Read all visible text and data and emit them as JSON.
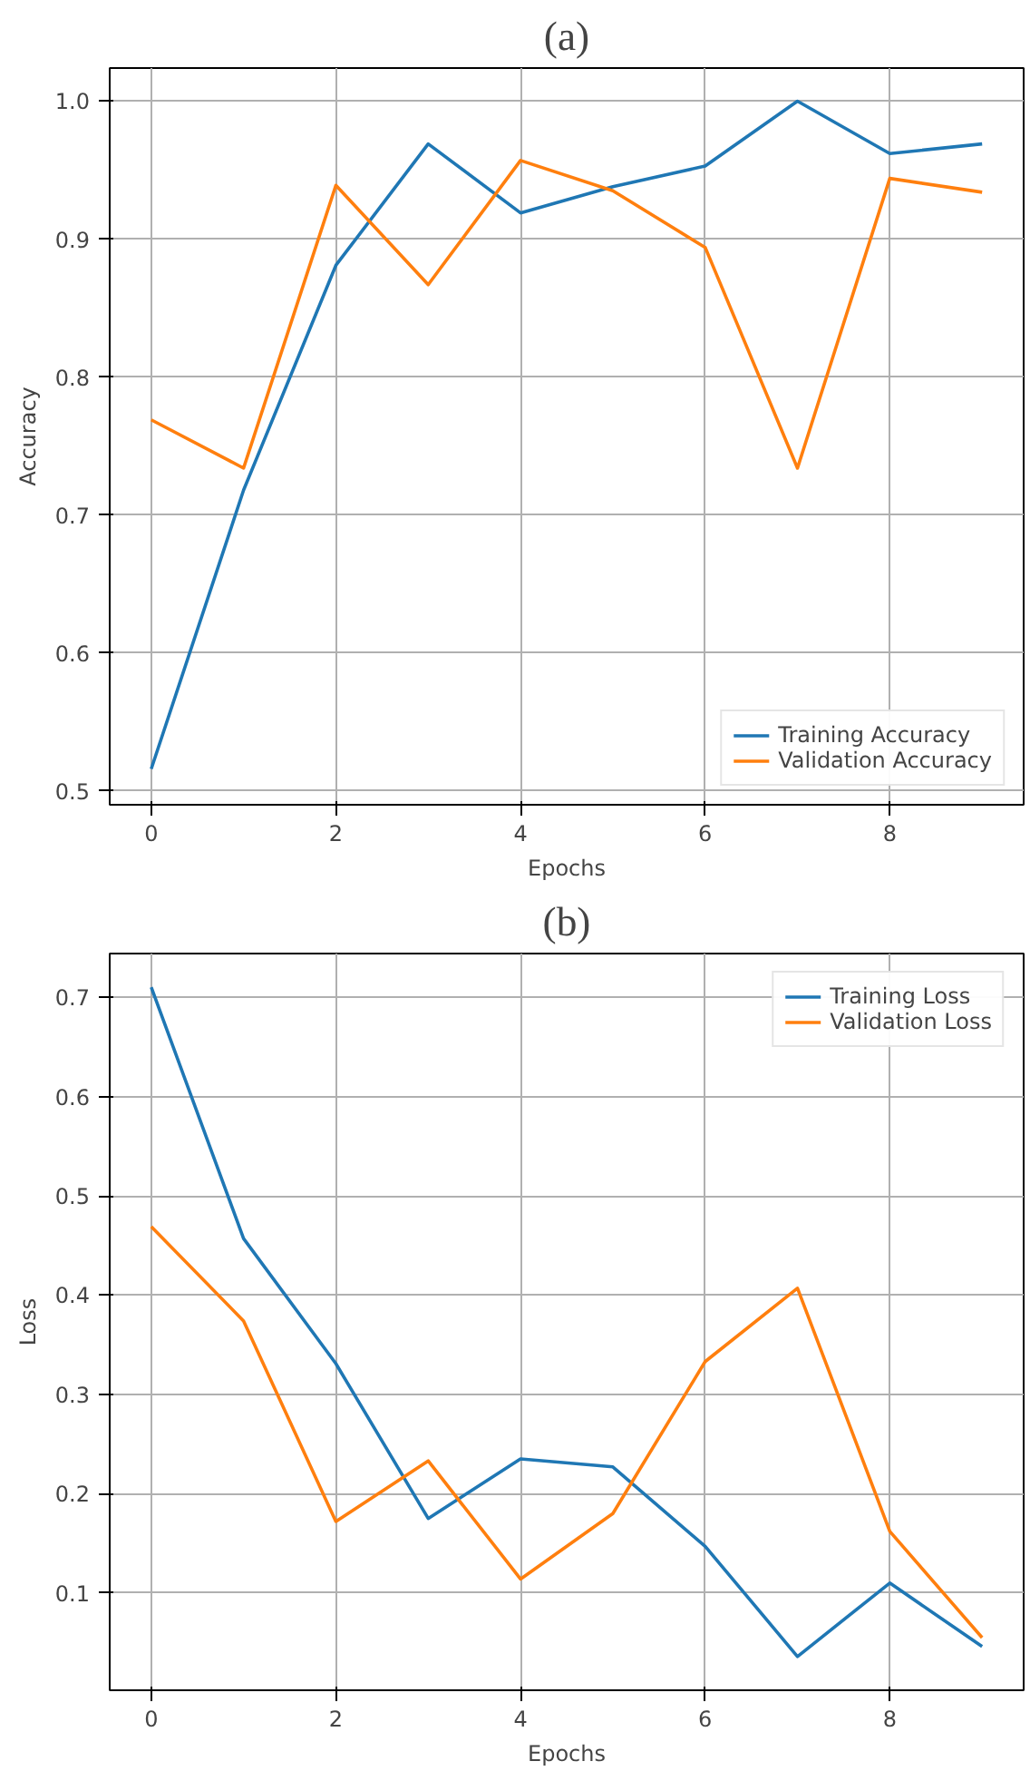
{
  "chart_data": [
    {
      "type": "line",
      "title": "(a)",
      "xlabel": "Epochs",
      "ylabel": "Accuracy",
      "x": [
        0,
        1,
        2,
        3,
        4,
        5,
        6,
        7,
        8,
        9
      ],
      "xlim": [
        -0.45,
        9.45
      ],
      "ylim": [
        0.49,
        1.024
      ],
      "xticks": [
        0,
        2,
        4,
        6,
        8
      ],
      "yticks": [
        {
          "value": 0.5,
          "label": "0.5"
        },
        {
          "value": 0.6,
          "label": "0.6"
        },
        {
          "value": 0.7,
          "label": "0.7"
        },
        {
          "value": 0.8,
          "label": "0.8"
        },
        {
          "value": 0.9,
          "label": "0.9"
        },
        {
          "value": 1.0,
          "label": "1.0"
        }
      ],
      "grid": true,
      "legend": "bottom right",
      "series": [
        {
          "name": "Training Accuracy",
          "color": "#1f77b4",
          "values": [
            0.516,
            0.718,
            0.881,
            0.969,
            0.919,
            0.938,
            0.953,
            1.0,
            0.962,
            0.969
          ]
        },
        {
          "name": "Validation Accuracy",
          "color": "#ff7f0e",
          "values": [
            0.769,
            0.734,
            0.939,
            0.867,
            0.957,
            0.935,
            0.894,
            0.734,
            0.944,
            0.934
          ]
        }
      ]
    },
    {
      "type": "line",
      "title": "(b)",
      "xlabel": "Epochs",
      "ylabel": "Loss",
      "x": [
        0,
        1,
        2,
        3,
        4,
        5,
        6,
        7,
        8,
        9
      ],
      "xlim": [
        -0.45,
        9.45
      ],
      "ylim": [
        0.002,
        0.744
      ],
      "xticks": [
        0,
        2,
        4,
        6,
        8
      ],
      "yticks": [
        0.1,
        0.2,
        0.3,
        0.4,
        0.5,
        0.6,
        0.7
      ],
      "grid": true,
      "legend": "top right",
      "series": [
        {
          "name": "Training Loss",
          "color": "#1f77b4",
          "values": [
            0.71,
            0.457,
            0.331,
            0.175,
            0.235,
            0.227,
            0.147,
            0.036,
            0.11,
            0.046
          ]
        },
        {
          "name": "Validation Loss",
          "color": "#ff7f0e",
          "values": [
            0.469,
            0.374,
            0.172,
            0.233,
            0.114,
            0.18,
            0.333,
            0.407,
            0.162,
            0.055
          ]
        }
      ]
    }
  ]
}
